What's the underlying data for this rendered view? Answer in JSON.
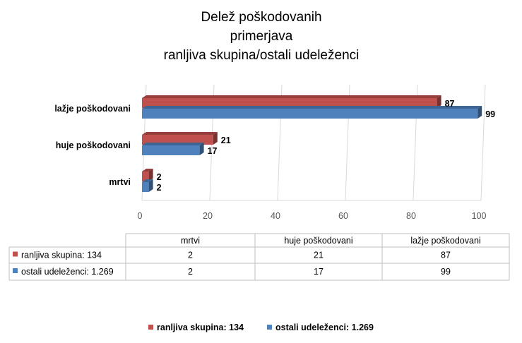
{
  "chart_data": {
    "type": "bar",
    "orientation": "horizontal",
    "title_lines": [
      "Delež poškodovanih",
      "primerjava",
      "ranljiva skupina/ostali udeleženci"
    ],
    "categories": [
      "mrtvi",
      "huje poškodovani",
      "lažje poškodovani"
    ],
    "series": [
      {
        "name": "ranljiva skupina: 134",
        "values": [
          2,
          21,
          87
        ],
        "color": "#c0504d"
      },
      {
        "name": "ostali udeleženci: 1.269",
        "values": [
          2,
          17,
          99
        ],
        "color": "#4f81bd"
      }
    ],
    "xlim": [
      0,
      100
    ],
    "x_ticks": [
      0,
      20,
      40,
      60,
      80,
      100
    ],
    "grid": true,
    "legend_position": "bottom",
    "data_table": {
      "columns": [
        "mrtvi",
        "huje poškodovani",
        "lažje poškodovani"
      ],
      "rows": [
        {
          "label": "ranljiva skupina: 134",
          "values": [
            "2",
            "21",
            "87"
          ]
        },
        {
          "label": "ostali udeleženci: 1.269",
          "values": [
            "2",
            "17",
            "99"
          ]
        }
      ]
    }
  }
}
